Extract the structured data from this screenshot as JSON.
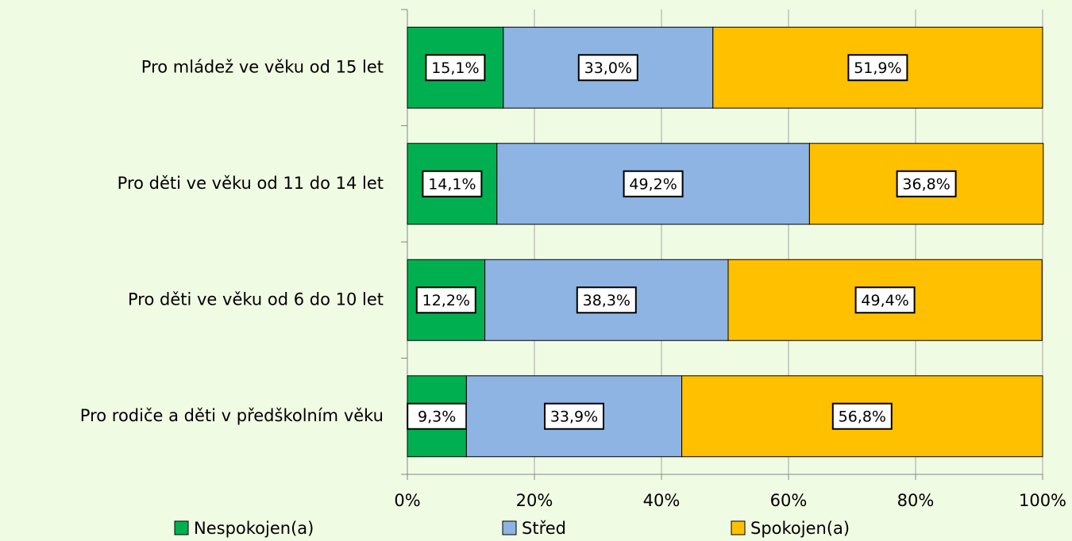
{
  "chart_data": {
    "type": "stacked-barh",
    "categories": [
      "Pro mládež ve věku od 15 let",
      "Pro děti ve věku od 11 do 14 let",
      "Pro děti ve věku od 6 do 10 let",
      "Pro rodiče a děti v předškolním věku"
    ],
    "series": [
      {
        "name": "Nespokojen(a)",
        "color": "#00b050",
        "values": [
          15.1,
          14.1,
          12.2,
          9.3
        ],
        "value_labels": [
          "15,1%",
          "14,1%",
          "12,2%",
          "9,3%"
        ]
      },
      {
        "name": "Střed",
        "color": "#8db4e2",
        "values": [
          33.0,
          49.2,
          38.3,
          33.9
        ],
        "value_labels": [
          "33,0%",
          "49,2%",
          "38,3%",
          "33,9%"
        ]
      },
      {
        "name": "Spokojen(a)",
        "color": "#ffc000",
        "values": [
          51.9,
          36.8,
          49.4,
          56.8
        ],
        "value_labels": [
          "51,9%",
          "36,8%",
          "49,4%",
          "56,8%"
        ]
      }
    ],
    "xlim": [
      0,
      100
    ],
    "xticks": [
      {
        "value": 0,
        "label": "0%"
      },
      {
        "value": 20,
        "label": "20%"
      },
      {
        "value": 40,
        "label": "40%"
      },
      {
        "value": 60,
        "label": "60%"
      },
      {
        "value": 80,
        "label": "80%"
      },
      {
        "value": 100,
        "label": "100%"
      }
    ],
    "grid": true,
    "legend": "bottom"
  }
}
